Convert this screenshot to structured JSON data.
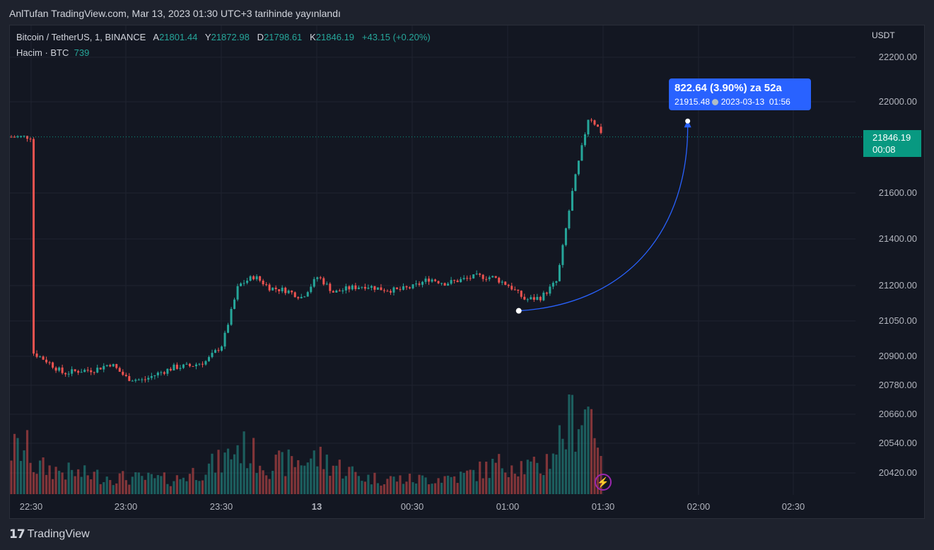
{
  "header": {
    "title": "AnlTufan TradingView.com, Mar 13, 2023 01:30 UTC+3 tarihinde yayınlandı"
  },
  "legend": {
    "symbol": "Bitcoin / TetherUS, 1, BINANCE",
    "open_label": "A",
    "open": "21801.44",
    "high_label": "Y",
    "high": "21872.98",
    "low_label": "D",
    "low": "21798.61",
    "close_label": "K",
    "close": "21846.19",
    "change": "+43.15 (+0.20%)",
    "volume_label": "Hacim · BTC",
    "volume": "739"
  },
  "price_axis": {
    "currency": "USDT"
  },
  "last_price": {
    "price": "21846.19",
    "countdown": "00:08",
    "color": "#089981"
  },
  "measure": {
    "line1": "822.64 (3.90%) za 52a",
    "price": "21915.48",
    "date": "2023-03-13",
    "time": "01:56",
    "color": "#2962ff"
  },
  "footer": {
    "brand": "TradingView"
  },
  "icons": {
    "lightning": "lightning-icon",
    "logo": "tradingview-logo-icon"
  },
  "colors": {
    "up": "#26a69a",
    "down": "#ef5350",
    "volume_up": "#26a69a80",
    "volume_down": "#ef535080",
    "line": "#2962ff"
  },
  "chart_data": {
    "type": "candlestick",
    "symbol": "Bitcoin / TetherUS",
    "interval": "1",
    "exchange": "BINANCE",
    "y_axis": {
      "ticks": [
        22200,
        22000,
        21600,
        21400,
        21200,
        21050,
        20900,
        20780,
        20660,
        20540,
        20420
      ],
      "unit": "USDT"
    },
    "x_axis": {
      "ticks": [
        "22:30",
        "23:00",
        "23:30",
        "13",
        "00:30",
        "01:00",
        "01:30",
        "02:00",
        "02:30"
      ]
    },
    "close_path": [
      [
        "22:30",
        20920
      ],
      [
        "22:35",
        20880
      ],
      [
        "22:40",
        20830
      ],
      [
        "22:45",
        20840
      ],
      [
        "22:50",
        20845
      ],
      [
        "22:55",
        20870
      ],
      [
        "23:00",
        20810
      ],
      [
        "23:05",
        20800
      ],
      [
        "23:10",
        20830
      ],
      [
        "23:15",
        20855
      ],
      [
        "23:20",
        20860
      ],
      [
        "23:25",
        20880
      ],
      [
        "23:30",
        20950
      ],
      [
        "23:35",
        21200
      ],
      [
        "23:40",
        21240
      ],
      [
        "23:45",
        21190
      ],
      [
        "23:50",
        21180
      ],
      [
        "23:55",
        21150
      ],
      [
        "00:00",
        21240
      ],
      [
        "00:05",
        21170
      ],
      [
        "00:10",
        21190
      ],
      [
        "00:15",
        21200
      ],
      [
        "00:20",
        21185
      ],
      [
        "00:25",
        21180
      ],
      [
        "00:30",
        21195
      ],
      [
        "00:35",
        21230
      ],
      [
        "00:40",
        21210
      ],
      [
        "00:45",
        21225
      ],
      [
        "00:50",
        21240
      ],
      [
        "00:55",
        21235
      ],
      [
        "01:00",
        21200
      ],
      [
        "01:05",
        21140
      ],
      [
        "01:10",
        21150
      ],
      [
        "01:15",
        21220
      ],
      [
        "01:20",
        21620
      ],
      [
        "01:25",
        21940
      ],
      [
        "01:30",
        21846.19
      ]
    ],
    "volume_profile": [
      [
        "22:30",
        35
      ],
      [
        "22:45",
        25
      ],
      [
        "23:00",
        20
      ],
      [
        "23:15",
        18
      ],
      [
        "23:30",
        40
      ],
      [
        "23:35",
        60
      ],
      [
        "23:45",
        35
      ],
      [
        "00:00",
        45
      ],
      [
        "00:15",
        20
      ],
      [
        "00:30",
        18
      ],
      [
        "00:45",
        22
      ],
      [
        "01:00",
        40
      ],
      [
        "01:10",
        30
      ],
      [
        "01:20",
        95
      ],
      [
        "01:25",
        110
      ],
      [
        "01:30",
        55
      ]
    ],
    "measure": {
      "from": [
        "01:03",
        21093
      ],
      "to": [
        "01:56",
        21915.48
      ],
      "change": "822.64",
      "percent": "3.90%",
      "bars": "52"
    },
    "last_price": 21846.19
  }
}
